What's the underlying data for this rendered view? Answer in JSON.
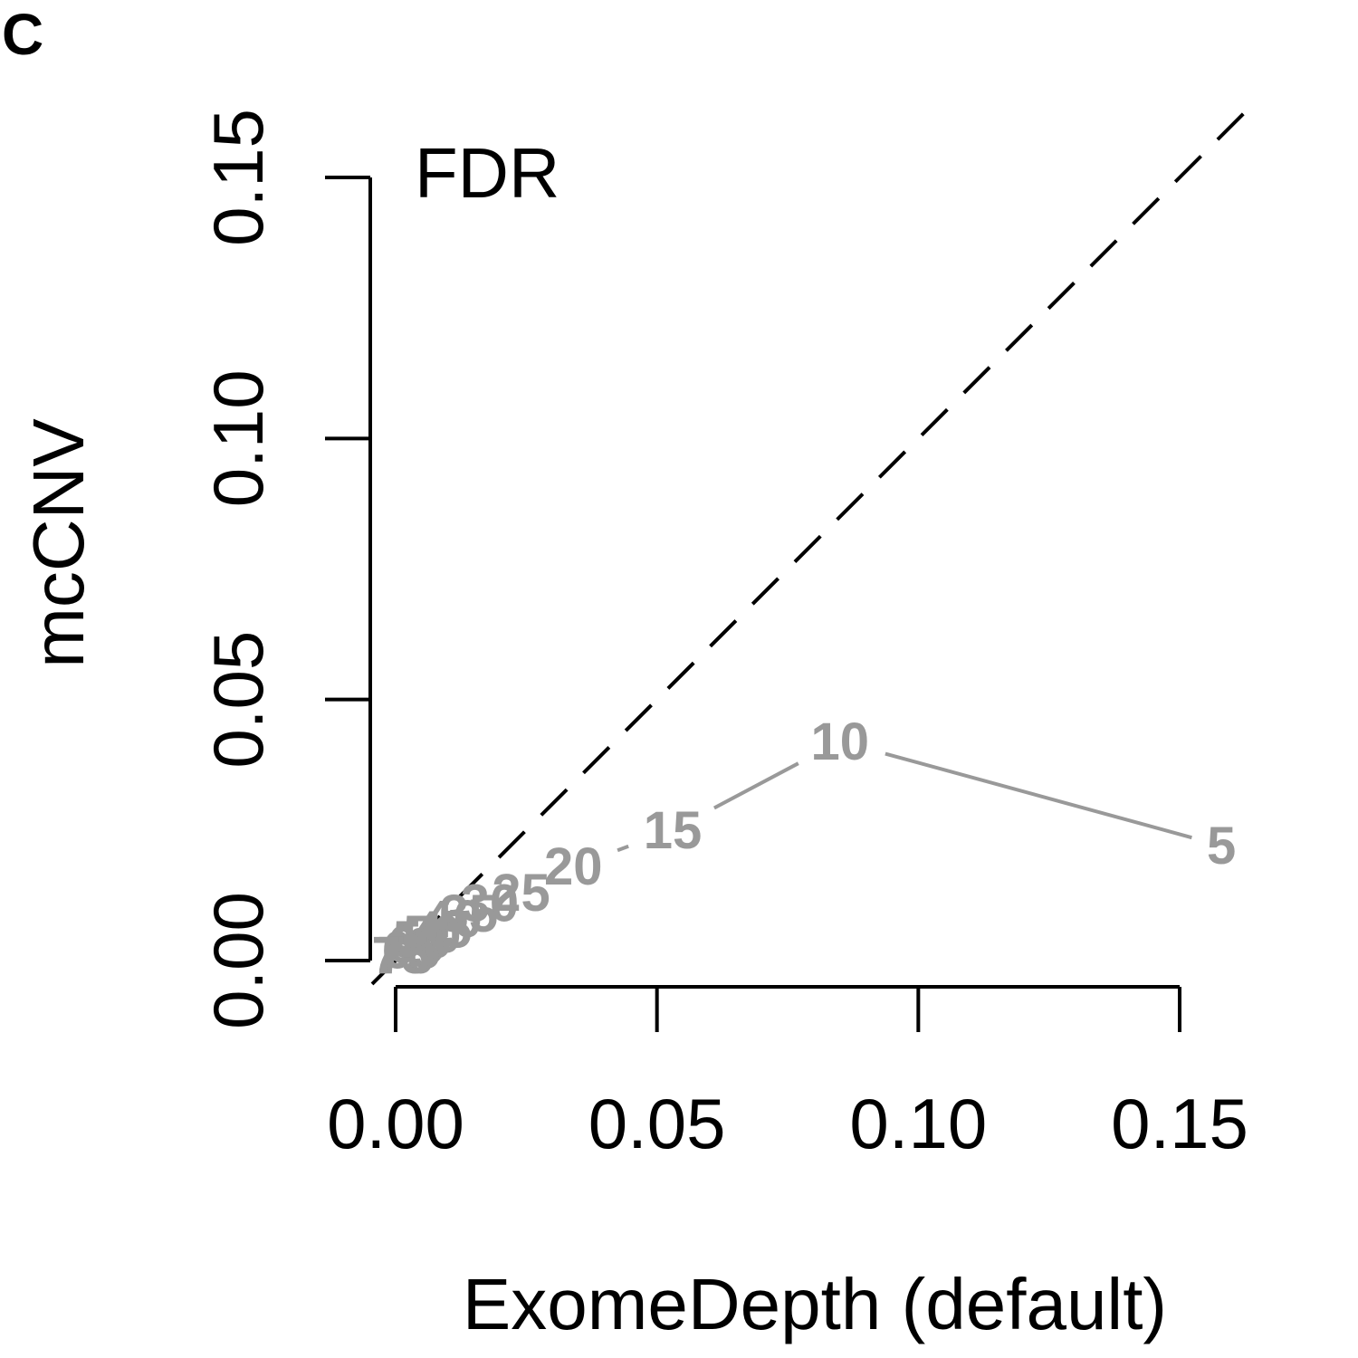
{
  "panel_label": "C",
  "chart_data": {
    "type": "line",
    "title": "FDR",
    "xlabel": "ExomeDepth (default)",
    "ylabel": "mcCNV",
    "xlim": [
      0,
      0.15
    ],
    "ylim": [
      0,
      0.15
    ],
    "xticks": [
      0,
      0.05,
      0.1,
      0.15
    ],
    "xtick_labels": [
      "0.00",
      "0.05",
      "0.10",
      "0.15"
    ],
    "yticks": [
      0,
      0.05,
      0.1,
      0.15
    ],
    "ytick_labels": [
      "0.00",
      "0.05",
      "0.10",
      "0.15"
    ],
    "reference_line": "y = x",
    "grid": false,
    "series": [
      {
        "color": "#999999",
        "points": [
          {
            "label": "5",
            "x": 0.158,
            "y": 0.022
          },
          {
            "label": "10",
            "x": 0.085,
            "y": 0.042
          },
          {
            "label": "15",
            "x": 0.053,
            "y": 0.025
          },
          {
            "label": "20",
            "x": 0.034,
            "y": 0.018
          },
          {
            "label": "25",
            "x": 0.024,
            "y": 0.013
          },
          {
            "label": "30",
            "x": 0.018,
            "y": 0.011
          },
          {
            "label": "35",
            "x": 0.014,
            "y": 0.009
          },
          {
            "label": "40",
            "x": 0.011,
            "y": 0.008
          },
          {
            "label": "45",
            "x": 0.009,
            "y": 0.006
          },
          {
            "label": "50",
            "x": 0.007,
            "y": 0.005
          },
          {
            "label": "55",
            "x": 0.005,
            "y": 0.004
          },
          {
            "label": "60",
            "x": 0.004,
            "y": 0.003
          },
          {
            "label": "65",
            "x": 0.003,
            "y": 0.002
          },
          {
            "label": "70",
            "x": 0.002,
            "y": 0.001
          },
          {
            "label": "75",
            "x": 0.001,
            "y": 0.001
          }
        ]
      }
    ]
  }
}
